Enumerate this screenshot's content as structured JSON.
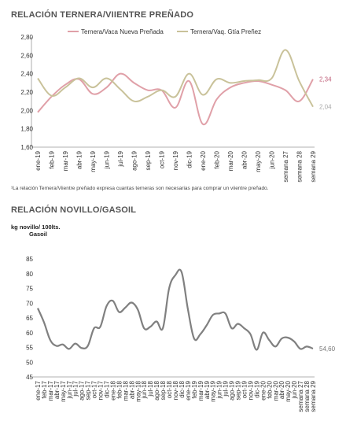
{
  "colors": {
    "ternera": "#e0a0a8",
    "vaq": "#c9c29a",
    "novillo": "#808080",
    "ternera_label": "#c0607a",
    "vaq_label": "#aaaaaa",
    "novillo_label": "#777777"
  },
  "footnote": "¹La relación Ternera/Viientre preñado expresa cuantas terneras son necesarias para comprar un viientre preñado.",
  "chart_data": [
    {
      "type": "line",
      "title": "RELACIÓN TERNERA/VIIENTRE PREÑADO",
      "categories": [
        "ene-19",
        "feb-19",
        "mar-19",
        "abr-19",
        "may-19",
        "jun-19",
        "jul-19",
        "ago-19",
        "sep-19",
        "oct-19",
        "nov-19",
        "dic-19",
        "ene-20",
        "feb-20",
        "mar-20",
        "abr-20",
        "may-20",
        "jun-20",
        "semana 27",
        "semana 28",
        "semana 29"
      ],
      "ylim": [
        1.6,
        2.8
      ],
      "yticks": [
        "1,60",
        "1,80",
        "2,00",
        "2,20",
        "2,40",
        "2,60",
        "2,80"
      ],
      "series": [
        {
          "name": "Ternera/Vaca Nueva Preñada",
          "values": [
            1.98,
            2.15,
            2.28,
            2.34,
            2.18,
            2.25,
            2.4,
            2.3,
            2.22,
            2.22,
            2.03,
            2.32,
            1.85,
            2.12,
            2.25,
            2.3,
            2.32,
            2.28,
            2.22,
            2.1,
            2.34
          ],
          "end_label": "2,34"
        },
        {
          "name": "Ternera/Vaq. Gtía Preñez",
          "values": [
            2.35,
            2.16,
            2.25,
            2.35,
            2.25,
            2.35,
            2.23,
            2.1,
            2.15,
            2.22,
            2.15,
            2.4,
            2.17,
            2.34,
            2.3,
            2.32,
            2.33,
            2.35,
            2.66,
            2.32,
            2.04
          ],
          "end_label": "2,04"
        }
      ]
    },
    {
      "type": "line",
      "title": "RELACIÓN NOVILLO/GASOIL",
      "ylabel": "kg novillo/ 100lts. Gasoil",
      "categories": [
        "ene-17",
        "feb-17",
        "mar-17",
        "abr-17",
        "may-17",
        "jun-17",
        "jul-17",
        "ago-17",
        "sep-17",
        "oct-17",
        "nov-17",
        "dic-17",
        "ene-18",
        "feb-18",
        "mar-18",
        "abr-18",
        "may-18",
        "jun-18",
        "jul-18",
        "ago-18",
        "sep-18",
        "oct-18",
        "nov-18",
        "dic-18",
        "ene-19",
        "feb-19",
        "mar-19",
        "abr-19",
        "may-19",
        "jun-19",
        "jul-19",
        "ago-19",
        "sep-19",
        "oct-19",
        "nov-19",
        "dic-19",
        "ene-20",
        "feb-20",
        "mar-20",
        "abr-20",
        "may-20",
        "jun-20",
        "semana 27",
        "semana 28",
        "semana 29"
      ],
      "ylim": [
        45,
        85
      ],
      "yticks": [
        "45",
        "50",
        "55",
        "60",
        "65",
        "70",
        "75",
        "80",
        "85"
      ],
      "series": [
        {
          "name": "Novillo/Gasoil",
          "values": [
            68.3,
            63.5,
            57.5,
            55.5,
            56,
            54.5,
            56.3,
            54.8,
            55.5,
            61.5,
            62,
            69,
            70.8,
            67,
            68.5,
            70.2,
            67.8,
            61.5,
            62,
            63.8,
            61.5,
            75,
            79.5,
            80.5,
            68,
            58,
            59.5,
            62.5,
            66,
            66.5,
            66.5,
            61.5,
            63,
            61.5,
            59.5,
            54.2,
            60,
            57.5,
            55.3,
            58,
            58.3,
            57,
            54.5,
            55.3,
            54.6
          ],
          "end_label": "54,60"
        }
      ]
    }
  ]
}
